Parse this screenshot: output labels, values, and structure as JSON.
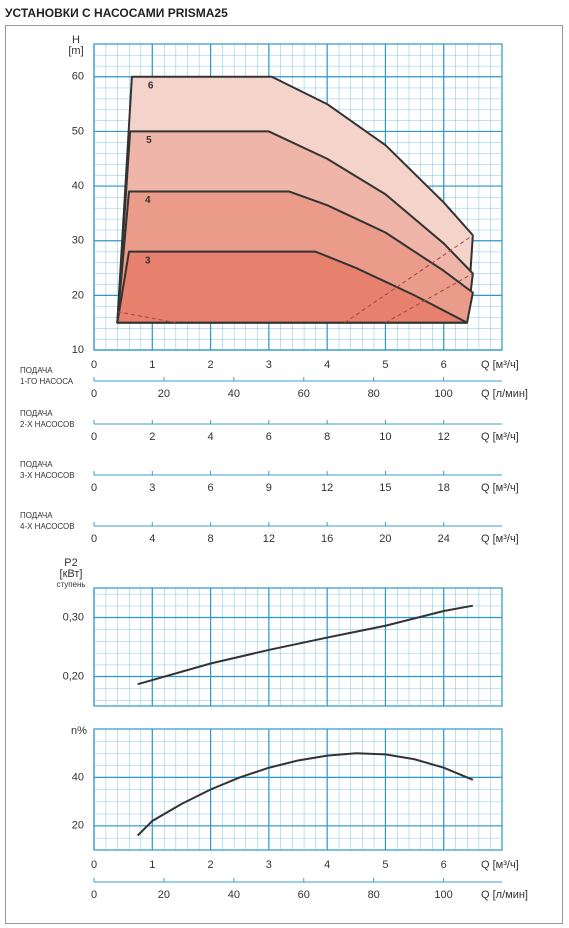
{
  "title": "УСТАНОВКИ С НАСОСАМИ PRISMA25",
  "chart_data": [
    {
      "type": "area",
      "ylabel": [
        "H",
        "[m]"
      ],
      "xlabel": "Q [м³/ч]",
      "xlim": [
        0,
        7
      ],
      "ylim": [
        10,
        66
      ],
      "xticks": [
        0,
        1,
        2,
        3,
        4,
        5,
        6
      ],
      "yticks": [
        10,
        20,
        30,
        40,
        50,
        60
      ],
      "grid": true,
      "minor_grid": [
        5,
        5
      ],
      "series": [
        {
          "name": "6",
          "color": "#f4d3cb",
          "x": [
            0.4,
            0.65,
            3.05,
            4.0,
            5.0,
            6.0,
            6.5,
            6.4
          ],
          "values": [
            15,
            60,
            60,
            55,
            47.5,
            37,
            31,
            15
          ]
        },
        {
          "name": "5",
          "color": "#eeb5a8",
          "x": [
            0.4,
            0.62,
            3.0,
            4.0,
            5.0,
            6.0,
            6.5,
            6.4
          ],
          "values": [
            15,
            50,
            50,
            45,
            38.5,
            29.5,
            24,
            15
          ]
        },
        {
          "name": "4",
          "color": "#ea9b8a",
          "x": [
            0.4,
            0.6,
            3.35,
            4.0,
            5.0,
            6.0,
            6.5,
            6.4
          ],
          "values": [
            15,
            39,
            39,
            36.5,
            31.5,
            24.5,
            20.5,
            15
          ]
        },
        {
          "name": "3",
          "color": "#e7806d",
          "x": [
            0.4,
            0.6,
            3.8,
            4.5,
            5.5,
            6.4
          ],
          "values": [
            15,
            28,
            28,
            25,
            20,
            15
          ]
        }
      ],
      "dashed": [
        {
          "x": [
            0.4,
            1.4
          ],
          "values": [
            17,
            15
          ]
        },
        {
          "x": [
            4.3,
            6.5
          ],
          "values": [
            15,
            31
          ]
        },
        {
          "x": [
            5.0,
            6.5
          ],
          "values": [
            15,
            24
          ]
        }
      ]
    },
    {
      "type": "axis",
      "label": [
        "ПОДАЧА",
        "1-ГО НАСОСА"
      ],
      "xlabel": "Q [л/мин]",
      "xlim": [
        0,
        116.7
      ],
      "xticks": [
        0,
        20,
        40,
        60,
        80,
        100
      ]
    },
    {
      "type": "axis",
      "label": [
        "ПОДАЧА",
        "2-Х НАСОСОВ"
      ],
      "xlabel": "Q [м³/ч]",
      "xlim": [
        0,
        14
      ],
      "xticks": [
        0,
        2,
        4,
        6,
        8,
        10,
        12
      ]
    },
    {
      "type": "axis",
      "label": [
        "ПОДАЧА",
        "3-Х НАСОСОВ"
      ],
      "xlabel": "Q [м³/ч]",
      "xlim": [
        0,
        21
      ],
      "xticks": [
        0,
        3,
        6,
        9,
        12,
        15,
        18
      ]
    },
    {
      "type": "axis",
      "label": [
        "ПОДАЧА",
        "4-Х НАСОСОВ"
      ],
      "xlabel": "Q [м³/ч]",
      "xlim": [
        0,
        28
      ],
      "xticks": [
        0,
        4,
        8,
        12,
        16,
        20,
        24
      ]
    },
    {
      "type": "line",
      "ylabel": [
        "P2",
        "[кВт]",
        "ступень"
      ],
      "xlim": [
        0,
        7
      ],
      "ylim": [
        0.15,
        0.35
      ],
      "xticks": [
        0,
        1,
        2,
        3,
        4,
        5,
        6
      ],
      "xtick_labels": false,
      "yticks": [
        {
          "value": 0.2,
          "label": "0,20"
        },
        {
          "value": 0.3,
          "label": "0,30"
        }
      ],
      "grid": true,
      "minor_grid": [
        5,
        5
      ],
      "series": [
        {
          "color": "#333333",
          "x": [
            0.75,
            1,
            2,
            3,
            4,
            5,
            6,
            6.5
          ],
          "values": [
            0.187,
            0.194,
            0.222,
            0.245,
            0.266,
            0.286,
            0.311,
            0.32
          ]
        }
      ]
    },
    {
      "type": "line",
      "ylabel": [
        "n%"
      ],
      "xlabel": "Q [м³/ч]",
      "xlim": [
        0,
        7
      ],
      "ylim": [
        10,
        60
      ],
      "xticks": [
        0,
        1,
        2,
        3,
        4,
        5,
        6
      ],
      "yticks": [
        20,
        40
      ],
      "grid": true,
      "minor_grid": [
        5,
        4
      ],
      "series": [
        {
          "color": "#333333",
          "x": [
            0.75,
            1,
            1.5,
            2,
            2.5,
            3,
            3.5,
            4,
            4.5,
            5,
            5.5,
            6,
            6.5
          ],
          "values": [
            16,
            22,
            29,
            35,
            40,
            44,
            47,
            49,
            50,
            49.5,
            47.5,
            44,
            39
          ]
        }
      ]
    },
    {
      "type": "axis",
      "xlabel": "Q [л/мин]",
      "xlim": [
        0,
        116.7
      ],
      "xticks": [
        0,
        20,
        40,
        60,
        80,
        100
      ]
    }
  ]
}
